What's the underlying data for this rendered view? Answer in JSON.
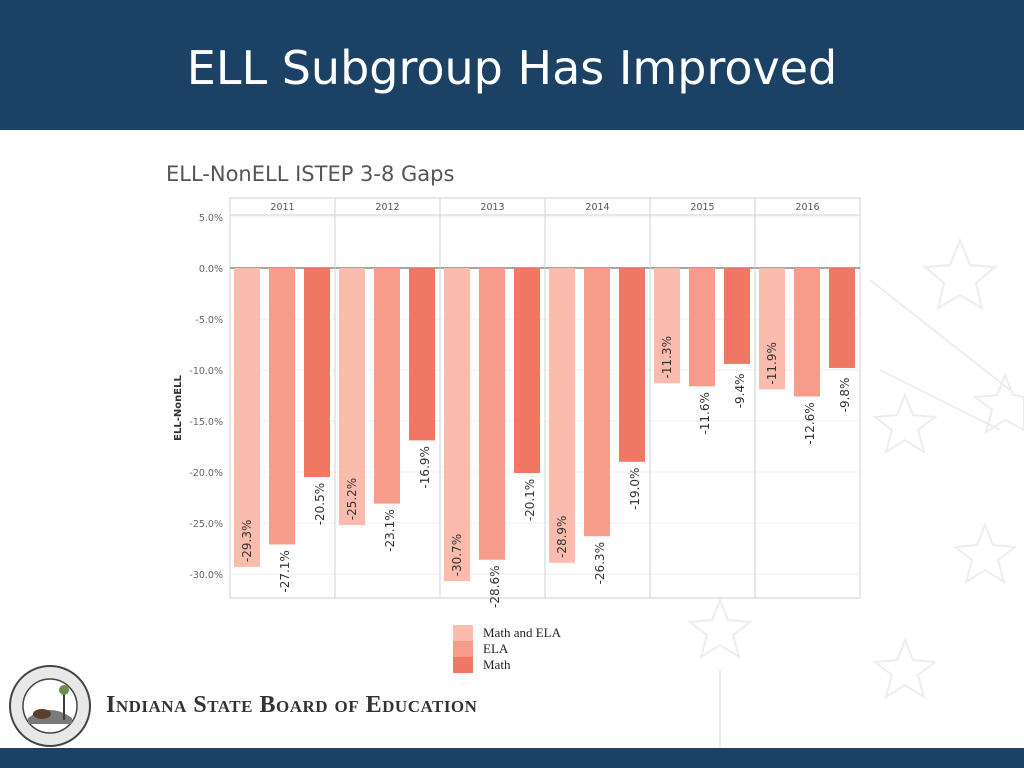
{
  "slide": {
    "title": "ELL Subgroup Has Improved",
    "organization": "Indiana State Board of Education"
  },
  "colors": {
    "header": "#1b4265",
    "math_and_ela": "#fbbcae",
    "ela": "#f79c8b",
    "math": "#f07763"
  },
  "legend": [
    {
      "label": "Math and ELA",
      "color": "#fbbcae"
    },
    {
      "label": "ELA",
      "color": "#f79c8b"
    },
    {
      "label": "Math",
      "color": "#f07763"
    }
  ],
  "chart_data": {
    "type": "bar",
    "title": "ELL-NonELL ISTEP 3-8 Gaps",
    "ylabel": "ELL-NonELL",
    "xlabel": "",
    "categories": [
      "2011",
      "2012",
      "2013",
      "2014",
      "2015",
      "2016"
    ],
    "series": [
      {
        "name": "Math and ELA",
        "values": [
          -29.3,
          -25.2,
          -30.7,
          -28.9,
          -11.3,
          -11.9
        ]
      },
      {
        "name": "ELA",
        "values": [
          -27.1,
          -23.1,
          -28.6,
          -26.3,
          -11.6,
          -12.6
        ]
      },
      {
        "name": "Math",
        "values": [
          -20.5,
          -16.9,
          -20.1,
          -19.0,
          -9.4,
          -9.8
        ]
      }
    ],
    "data_labels": [
      [
        "-29.3%",
        "-27.1%",
        "-20.5%"
      ],
      [
        "-25.2%",
        "-23.1%",
        "-16.9%"
      ],
      [
        "-30.7%",
        "-28.6%",
        "-20.1%"
      ],
      [
        "-28.9%",
        "-26.3%",
        "-19.0%"
      ],
      [
        "-11.3%",
        "-11.6%",
        "-9.4%"
      ],
      [
        "-11.9%",
        "-12.6%",
        "-9.8%"
      ]
    ],
    "yticks": [
      5,
      0,
      -5,
      -10,
      -15,
      -20,
      -25,
      -30
    ],
    "ytick_labels": [
      "5.0%",
      "0.0%",
      "-5.0%",
      "-10.0%",
      "-15.0%",
      "-20.0%",
      "-25.0%",
      "-30.0%"
    ],
    "ylim": [
      -32,
      6.5
    ],
    "grid": true,
    "legend_position": "bottom-center"
  }
}
